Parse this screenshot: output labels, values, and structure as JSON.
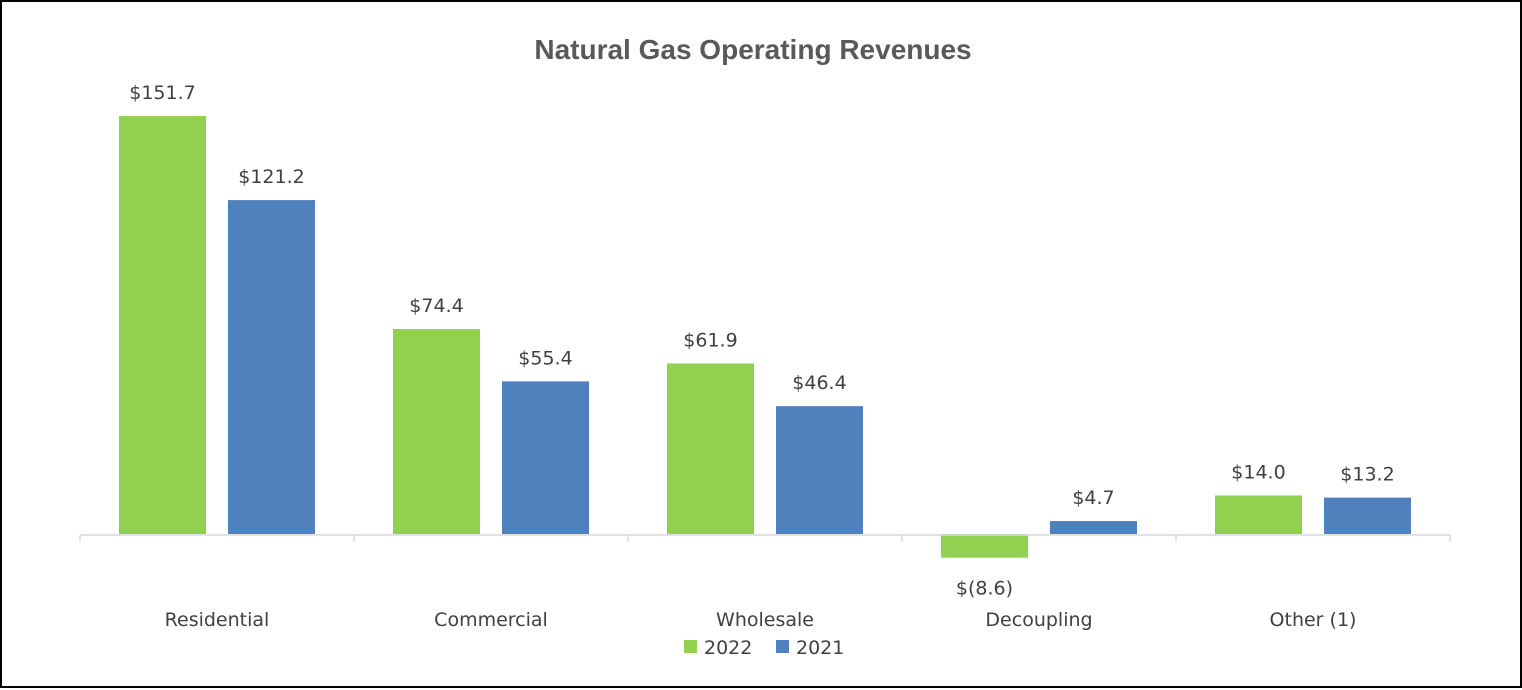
{
  "chart_data": {
    "type": "bar",
    "title": "Natural Gas Operating Revenues",
    "categories": [
      "Residential",
      "Commercial",
      "Wholesale",
      "Decoupling",
      "Other (1)"
    ],
    "series": [
      {
        "name": "2022",
        "color": "#92d050",
        "values": [
          151.7,
          74.4,
          61.9,
          -8.6,
          14.0
        ],
        "labels": [
          "$151.7",
          "$74.4",
          "$61.9",
          "$(8.6)",
          "$14.0"
        ]
      },
      {
        "name": "2021",
        "color": "#4f81bd",
        "values": [
          121.2,
          55.4,
          46.4,
          4.7,
          13.2
        ],
        "labels": [
          "$121.2",
          "$55.4",
          "$46.4",
          "$4.7",
          "$13.2"
        ]
      }
    ],
    "xlabel": "",
    "ylabel": "",
    "grid": false,
    "legend_position": "bottom"
  }
}
